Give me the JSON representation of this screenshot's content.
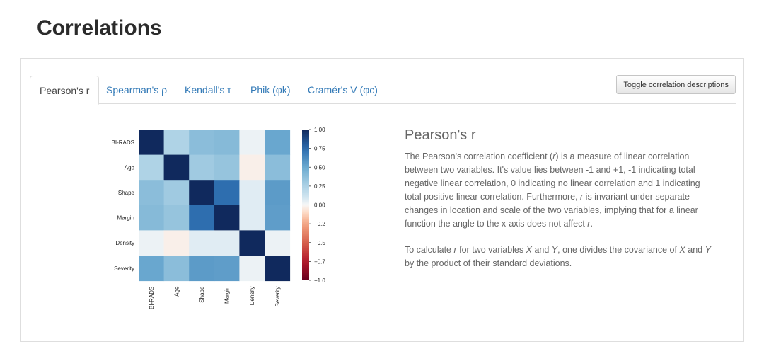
{
  "page": {
    "title": "Correlations"
  },
  "tabs": [
    {
      "label": "Pearson's r",
      "active": true
    },
    {
      "label": "Spearman's ρ",
      "active": false
    },
    {
      "label": "Kendall's τ",
      "active": false
    },
    {
      "label": "Phik (φk)",
      "active": false
    },
    {
      "label": "Cramér's V (φc)",
      "active": false
    }
  ],
  "toolbar": {
    "toggle_label": "Toggle correlation descriptions"
  },
  "description": {
    "title": "Pearson's r",
    "p1": [
      {
        "t": "The Pearson's correlation coefficient ("
      },
      {
        "t": "r",
        "i": true
      },
      {
        "t": ") is a measure of linear correlation between two variables. It's value lies between -1 and +1, -1 indicating total negative linear correlation, 0 indicating no linear correlation and 1 indicating total positive linear correlation. Furthermore, "
      },
      {
        "t": "r",
        "i": true
      },
      {
        "t": " is invariant under separate changes in location and scale of the two variables, implying that for a linear function the angle to the x-axis does not affect "
      },
      {
        "t": "r",
        "i": true
      },
      {
        "t": "."
      }
    ],
    "p2": [
      {
        "t": "To calculate "
      },
      {
        "t": "r",
        "i": true
      },
      {
        "t": " for two variables "
      },
      {
        "t": "X",
        "i": true
      },
      {
        "t": " and "
      },
      {
        "t": "Y",
        "i": true
      },
      {
        "t": ", one divides the covariance of "
      },
      {
        "t": "X",
        "i": true
      },
      {
        "t": " and "
      },
      {
        "t": "Y",
        "i": true
      },
      {
        "t": " by the product of their standard deviations."
      }
    ]
  },
  "chart_data": {
    "type": "heatmap",
    "variables": [
      "BI-RADS",
      "Age",
      "Shape",
      "Margin",
      "Density",
      "Severity"
    ],
    "matrix": [
      [
        1.0,
        0.24,
        0.38,
        0.4,
        0.03,
        0.51
      ],
      [
        0.24,
        1.0,
        0.3,
        0.34,
        -0.03,
        0.38
      ],
      [
        0.38,
        0.3,
        1.0,
        0.74,
        0.06,
        0.56
      ],
      [
        0.4,
        0.34,
        0.74,
        1.0,
        0.06,
        0.55
      ],
      [
        0.03,
        -0.03,
        0.06,
        0.06,
        1.0,
        0.03
      ],
      [
        0.51,
        0.38,
        0.56,
        0.55,
        0.03,
        1.0
      ]
    ],
    "colorbar": {
      "range": [
        -1,
        1
      ],
      "ticks": [
        "1.00",
        "0.75",
        "0.50",
        "0.25",
        "0.00",
        "−0.25",
        "−0.50",
        "−0.75",
        "−1.00"
      ],
      "colormap": "RdBu"
    }
  }
}
